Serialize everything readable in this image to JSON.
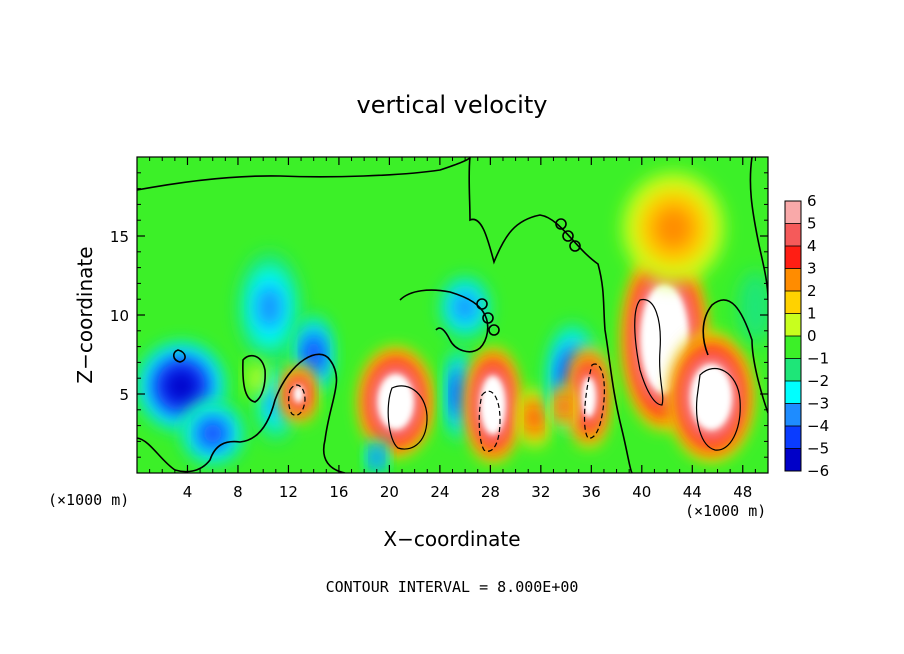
{
  "chart_data": {
    "type": "heatmap",
    "title": "vertical velocity",
    "xlabel": "X−coordinate",
    "ylabel": "Z−coordinate",
    "x_unit_left": "(×1000 m)",
    "x_unit_right": "(×1000 m)",
    "footer": "CONTOUR INTERVAL = 8.000E+00",
    "xlim": [
      0,
      50
    ],
    "ylim": [
      0,
      20
    ],
    "x_ticks": [
      4,
      8,
      12,
      16,
      20,
      24,
      28,
      32,
      36,
      40,
      44,
      48
    ],
    "y_ticks": [
      5,
      10,
      15
    ],
    "colorbar": {
      "levels": [
        6,
        5,
        4,
        3,
        2,
        1,
        0,
        -1,
        -2,
        -3,
        -4,
        -5,
        -6
      ],
      "labels": [
        "6",
        "5",
        "4",
        "3",
        "2",
        "1",
        "0",
        "−1",
        "−2",
        "−3",
        "−4",
        "−5",
        "−6"
      ],
      "colors": [
        "#f9a9a9",
        "#f55a5a",
        "#ff1e14",
        "#ff8c00",
        "#ffd200",
        "#c8ff1e",
        "#3cf028",
        "#1ee678",
        "#00ffff",
        "#1e8cff",
        "#0a3cff",
        "#0000c8",
        "#8c00d2"
      ]
    },
    "background_color": "#3cf028",
    "features": [
      {
        "kind": "downdraft",
        "x": 3.5,
        "z": 5.5,
        "w": -5.5,
        "rx": 3.5,
        "rz": 2.8
      },
      {
        "kind": "downdraft",
        "x": 6.0,
        "z": 2.5,
        "w": -4.0,
        "rx": 2.5,
        "rz": 2.0
      },
      {
        "kind": "downdraft",
        "x": 10.5,
        "z": 10.5,
        "w": -3.0,
        "rx": 2.5,
        "rz": 3.5
      },
      {
        "kind": "downdraft",
        "x": 14.0,
        "z": 7.5,
        "w": -4.5,
        "rx": 1.5,
        "rz": 2.5
      },
      {
        "kind": "downdraft",
        "x": 11.0,
        "z": 4.5,
        "w": -3.0,
        "rx": 1.5,
        "rz": 2.5
      },
      {
        "kind": "updraft",
        "x": 12.8,
        "z": 5.0,
        "w": 9.0,
        "rx": 1.1,
        "rz": 1.6
      },
      {
        "kind": "updraft",
        "x": 9.5,
        "z": 6.0,
        "w": 1.5,
        "rx": 0.8,
        "rz": 1.2
      },
      {
        "kind": "updraft",
        "x": 20.5,
        "z": 4.5,
        "w": 12.0,
        "rx": 2.6,
        "rz": 3.2
      },
      {
        "kind": "downdraft",
        "x": 19.0,
        "z": 1.0,
        "w": -4.5,
        "rx": 0.8,
        "rz": 1.0
      },
      {
        "kind": "downdraft",
        "x": 25.5,
        "z": 5.0,
        "w": -4.5,
        "rx": 1.0,
        "rz": 3.0
      },
      {
        "kind": "updraft",
        "x": 28.2,
        "z": 4.3,
        "w": 12.0,
        "rx": 1.8,
        "rz": 3.4
      },
      {
        "kind": "downdraft",
        "x": 26.0,
        "z": 10.5,
        "w": -3.5,
        "rx": 2.0,
        "rz": 2.0
      },
      {
        "kind": "updraft",
        "x": 31.5,
        "z": 3.5,
        "w": 5.0,
        "rx": 1.0,
        "rz": 1.8
      },
      {
        "kind": "downdraft",
        "x": 34.5,
        "z": 6.0,
        "w": -4.5,
        "rx": 2.0,
        "rz": 3.5
      },
      {
        "kind": "updraft",
        "x": 35.8,
        "z": 4.8,
        "w": 10.0,
        "rx": 1.3,
        "rz": 3.0
      },
      {
        "kind": "updraft",
        "x": 33.8,
        "z": 4.2,
        "w": 6.0,
        "rx": 0.7,
        "rz": 1.2
      },
      {
        "kind": "updraft",
        "x": 41.8,
        "z": 8.5,
        "w": 14.0,
        "rx": 3.0,
        "rz": 5.5
      },
      {
        "kind": "updraft",
        "x": 45.5,
        "z": 4.8,
        "w": 12.0,
        "rx": 3.0,
        "rz": 3.8
      },
      {
        "kind": "updraft",
        "x": 42.5,
        "z": 15.5,
        "w": 3.0,
        "rx": 4.0,
        "rz": 3.5
      },
      {
        "kind": "downdraft",
        "x": 49.0,
        "z": 10.5,
        "w": -1.5,
        "rx": 1.5,
        "rz": 2.5
      }
    ]
  }
}
